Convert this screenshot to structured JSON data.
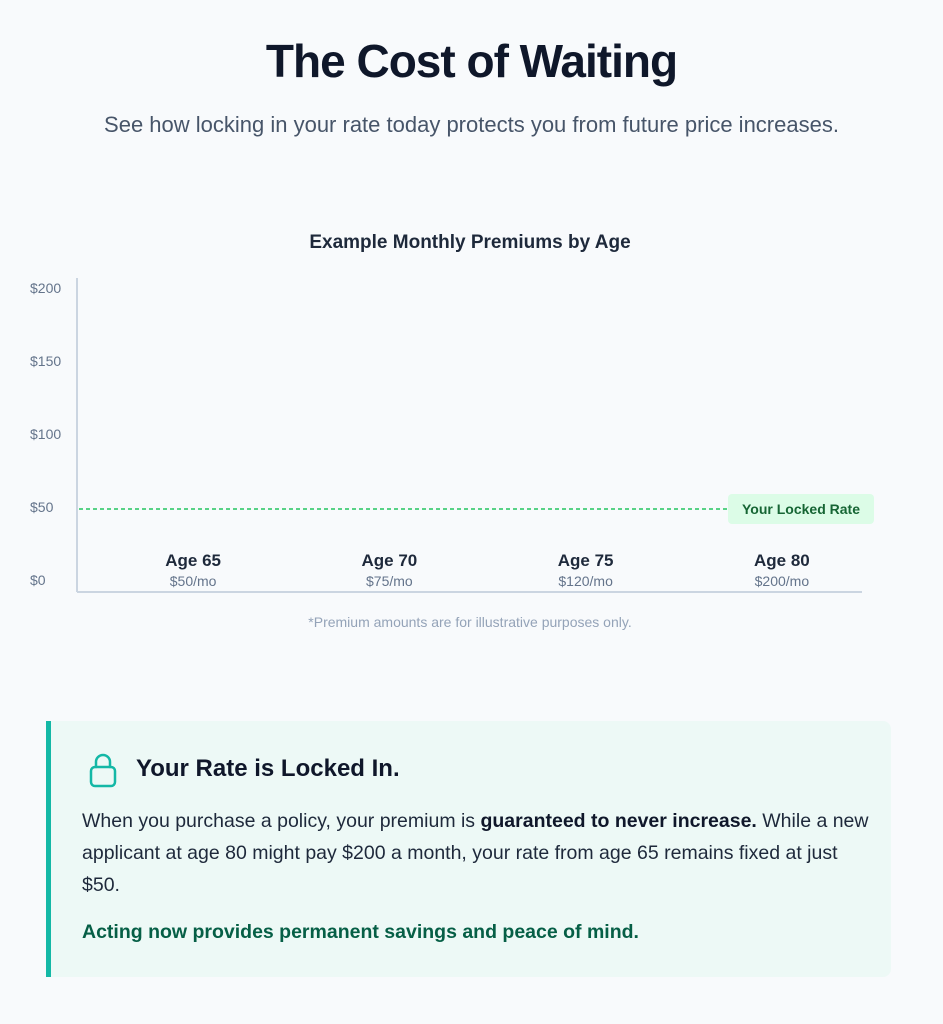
{
  "header": {
    "title": "The Cost of Waiting",
    "subtitle": "See how locking in your rate today protects you from future price increases."
  },
  "chart_data": {
    "type": "bar",
    "title": "Example Monthly Premiums by Age",
    "categories": [
      "Age 65",
      "Age 70",
      "Age 75",
      "Age 80"
    ],
    "value_labels": [
      "$50/mo",
      "$75/mo",
      "$120/mo",
      "$200/mo"
    ],
    "values": [
      50,
      75,
      120,
      200
    ],
    "ylim": [
      0,
      200
    ],
    "yticks": [
      0,
      50,
      100,
      150,
      200
    ],
    "ytick_labels": [
      "$0",
      "$50",
      "$100",
      "$150",
      "$200"
    ],
    "reference_line": {
      "value": 50,
      "label": "Your Locked Rate",
      "style": "dashed",
      "color": "#22c55e"
    },
    "footnote": "*Premium amounts are for illustrative purposes only."
  },
  "callout": {
    "icon": "lock-icon",
    "heading": "Your Rate is Locked In.",
    "body_pre": "When you purchase a policy, your premium is ",
    "body_strong": "guaranteed to never increase.",
    "body_post": " While a new applicant at age 80 might pay $200 a month, your rate from age 65 remains fixed at just $50.",
    "cta": "Acting now provides permanent savings and peace of mind."
  },
  "colors": {
    "accent": "#14b8a6",
    "success_text": "#065f46",
    "locked_line": "#22c55e",
    "callout_bg": "#edf9f6"
  }
}
